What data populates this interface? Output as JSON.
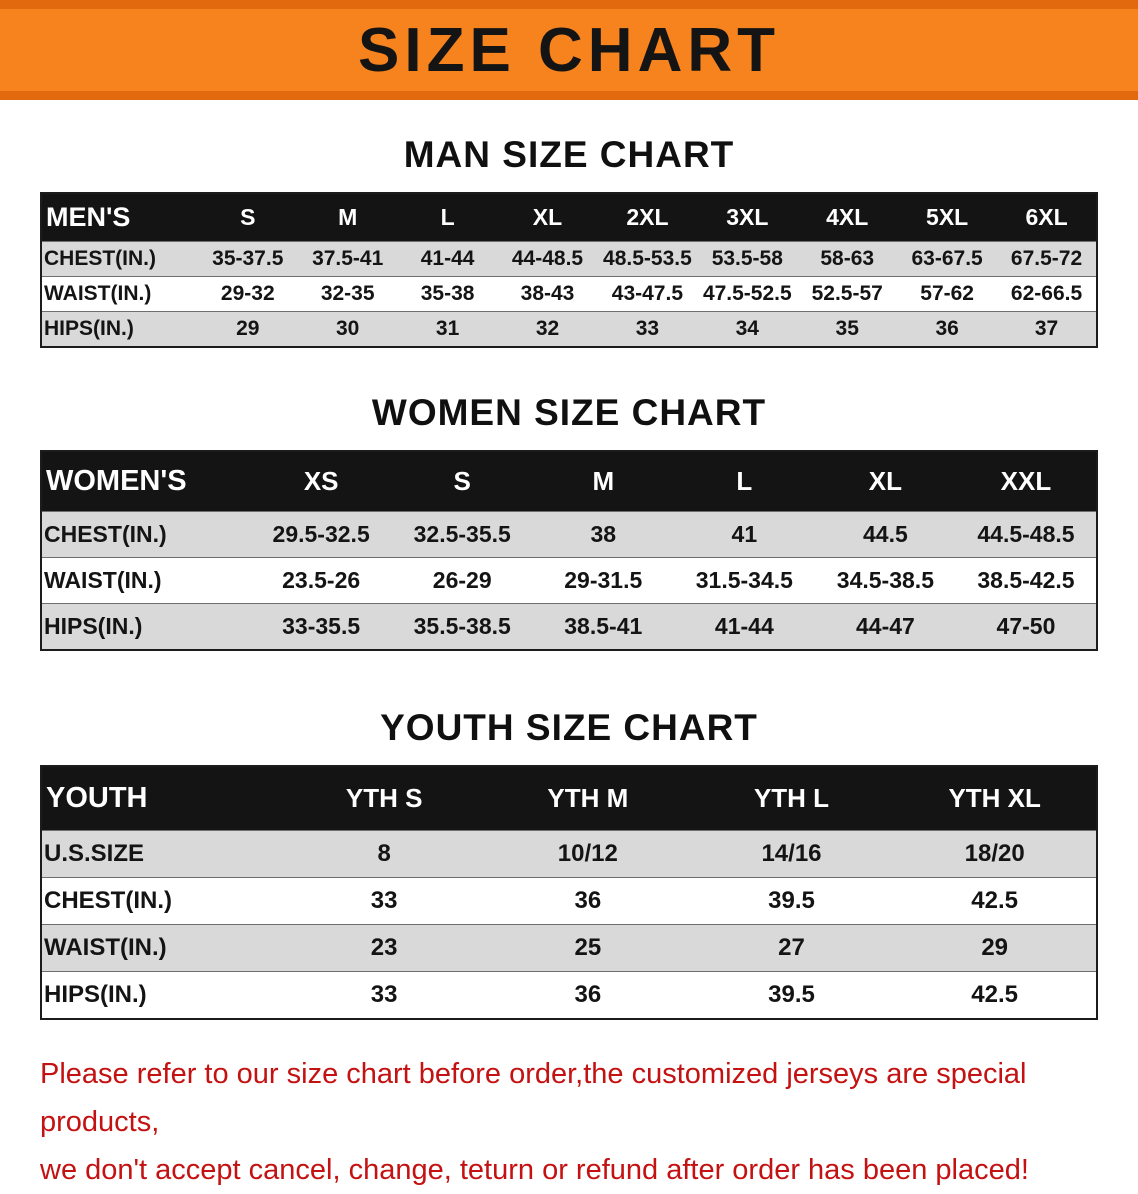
{
  "banner": {
    "title": "SIZE CHART",
    "bg_color": "#f6831d",
    "edge_color": "#e2690e"
  },
  "tables": [
    {
      "id": "mens",
      "title": "MAN SIZE CHART",
      "header": [
        "MEN'S",
        "S",
        "M",
        "L",
        "XL",
        "2XL",
        "3XL",
        "4XL",
        "5XL",
        "6XL"
      ],
      "rows": [
        [
          "CHEST(IN.)",
          "35-37.5",
          "37.5-41",
          "41-44",
          "44-48.5",
          "48.5-53.5",
          "53.5-58",
          "58-63",
          "63-67.5",
          "67.5-72"
        ],
        [
          "WAIST(IN.)",
          "29-32",
          "32-35",
          "35-38",
          "38-43",
          "43-47.5",
          "47.5-52.5",
          "52.5-57",
          "57-62",
          "62-66.5"
        ],
        [
          "HIPS(IN.)",
          "29",
          "30",
          "31",
          "32",
          "33",
          "34",
          "35",
          "36",
          "37"
        ]
      ]
    },
    {
      "id": "womens",
      "title": "WOMEN SIZE CHART",
      "header": [
        "WOMEN'S",
        "XS",
        "S",
        "M",
        "L",
        "XL",
        "XXL"
      ],
      "rows": [
        [
          "CHEST(IN.)",
          "29.5-32.5",
          "32.5-35.5",
          "38",
          "41",
          "44.5",
          "44.5-48.5"
        ],
        [
          "WAIST(IN.)",
          "23.5-26",
          "26-29",
          "29-31.5",
          "31.5-34.5",
          "34.5-38.5",
          "38.5-42.5"
        ],
        [
          "HIPS(IN.)",
          "33-35.5",
          "35.5-38.5",
          "38.5-41",
          "41-44",
          "44-47",
          "47-50"
        ]
      ]
    },
    {
      "id": "youth",
      "title": "YOUTH SIZE CHART",
      "header": [
        "YOUTH",
        "YTH S",
        "YTH M",
        "YTH L",
        "YTH XL"
      ],
      "rows": [
        [
          "U.S.SIZE",
          "8",
          "10/12",
          "14/16",
          "18/20"
        ],
        [
          "CHEST(IN.)",
          "33",
          "36",
          "39.5",
          "42.5"
        ],
        [
          "WAIST(IN.)",
          "23",
          "25",
          "27",
          "29"
        ],
        [
          "HIPS(IN.)",
          "33",
          "36",
          "39.5",
          "42.5"
        ]
      ]
    }
  ],
  "notice": {
    "line1": "Please refer to our size chart before order,the customized jerseys are special products,",
    "line2": "we don't accept cancel, change, teturn or refund after order has been placed!",
    "color": "#c41111"
  }
}
